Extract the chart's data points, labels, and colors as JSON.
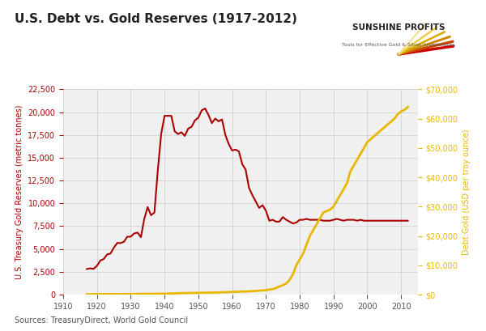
{
  "title": "U.S. Debt vs. Gold Reserves (1917-2012)",
  "source_text": "Sources: TreasuryDirect, World Gold Council",
  "ylabel_left": "U.S. Treasury Gold Reserves (metric tonnes)",
  "ylabel_right": "Debt:Gold (USD per troy ounce)",
  "background_color": "#f0f0f0",
  "outer_background": "#ffffff",
  "left_color": "#aa0000",
  "right_color": "#e8b800",
  "xlim": [
    1910,
    2015
  ],
  "ylim_left": [
    0,
    22500
  ],
  "ylim_right": [
    0,
    70000
  ],
  "yticks_left": [
    0,
    2500,
    5000,
    7500,
    10000,
    12500,
    15000,
    17500,
    20000,
    22500
  ],
  "yticks_right": [
    0,
    10000,
    20000,
    30000,
    40000,
    50000,
    60000,
    70000
  ],
  "xticks": [
    1910,
    1920,
    1930,
    1940,
    1950,
    1960,
    1970,
    1980,
    1990,
    2000,
    2010
  ],
  "gold_reserves": {
    "years": [
      1917,
      1918,
      1919,
      1920,
      1921,
      1922,
      1923,
      1924,
      1925,
      1926,
      1927,
      1928,
      1929,
      1930,
      1931,
      1932,
      1933,
      1934,
      1935,
      1936,
      1937,
      1938,
      1939,
      1940,
      1941,
      1942,
      1943,
      1944,
      1945,
      1946,
      1947,
      1948,
      1949,
      1950,
      1951,
      1952,
      1953,
      1954,
      1955,
      1956,
      1957,
      1958,
      1959,
      1960,
      1961,
      1962,
      1963,
      1964,
      1965,
      1966,
      1967,
      1968,
      1969,
      1970,
      1971,
      1972,
      1973,
      1974,
      1975,
      1976,
      1977,
      1978,
      1979,
      1980,
      1981,
      1982,
      1983,
      1984,
      1985,
      1986,
      1987,
      1988,
      1989,
      1990,
      1991,
      1992,
      1993,
      1994,
      1995,
      1996,
      1997,
      1998,
      1999,
      2000,
      2001,
      2002,
      2003,
      2004,
      2005,
      2006,
      2007,
      2008,
      2009,
      2010,
      2011,
      2012
    ],
    "values": [
      2800,
      2880,
      2820,
      3160,
      3740,
      3900,
      4400,
      4500,
      5150,
      5660,
      5650,
      5800,
      6350,
      6350,
      6700,
      6800,
      6300,
      8300,
      9600,
      8700,
      9000,
      13600,
      17600,
      19600,
      19600,
      19600,
      17900,
      17600,
      17800,
      17400,
      18200,
      18400,
      19100,
      19400,
      20200,
      20400,
      19700,
      18800,
      19300,
      19000,
      19200,
      17500,
      16500,
      15800,
      15900,
      15700,
      14300,
      13700,
      11700,
      10900,
      10200,
      9500,
      9800,
      9200,
      8100,
      8200,
      8000,
      8000,
      8500,
      8200,
      8000,
      7800,
      7900,
      8200,
      8200,
      8300,
      8200,
      8200,
      8200,
      8200,
      8100,
      8100,
      8100,
      8200,
      8300,
      8200,
      8100,
      8200,
      8200,
      8200,
      8100,
      8200,
      8100,
      8100,
      8100,
      8100,
      8100,
      8100,
      8100,
      8100,
      8100,
      8100,
      8100,
      8100,
      8100,
      8100
    ]
  },
  "debt_gold": {
    "years": [
      1917,
      1920,
      1925,
      1930,
      1935,
      1940,
      1945,
      1950,
      1955,
      1960,
      1965,
      1970,
      1971,
      1972,
      1973,
      1974,
      1975,
      1976,
      1977,
      1978,
      1979,
      1980,
      1981,
      1982,
      1983,
      1984,
      1985,
      1986,
      1987,
      1988,
      1989,
      1990,
      1991,
      1992,
      1993,
      1994,
      1995,
      1996,
      1997,
      1998,
      1999,
      2000,
      2001,
      2002,
      2003,
      2004,
      2005,
      2006,
      2007,
      2008,
      2009,
      2010,
      2011,
      2012
    ],
    "values": [
      100,
      150,
      160,
      200,
      250,
      300,
      500,
      600,
      700,
      900,
      1100,
      1500,
      1700,
      1900,
      2200,
      2800,
      3200,
      3800,
      5000,
      7000,
      10000,
      12000,
      14000,
      17000,
      20000,
      22000,
      24000,
      26000,
      28000,
      28500,
      29000,
      30000,
      32000,
      34000,
      36000,
      38000,
      42000,
      44000,
      46000,
      48000,
      50000,
      52000,
      53000,
      54000,
      55000,
      56000,
      57000,
      58000,
      59000,
      60000,
      61500,
      62500,
      63000,
      64000
    ]
  }
}
